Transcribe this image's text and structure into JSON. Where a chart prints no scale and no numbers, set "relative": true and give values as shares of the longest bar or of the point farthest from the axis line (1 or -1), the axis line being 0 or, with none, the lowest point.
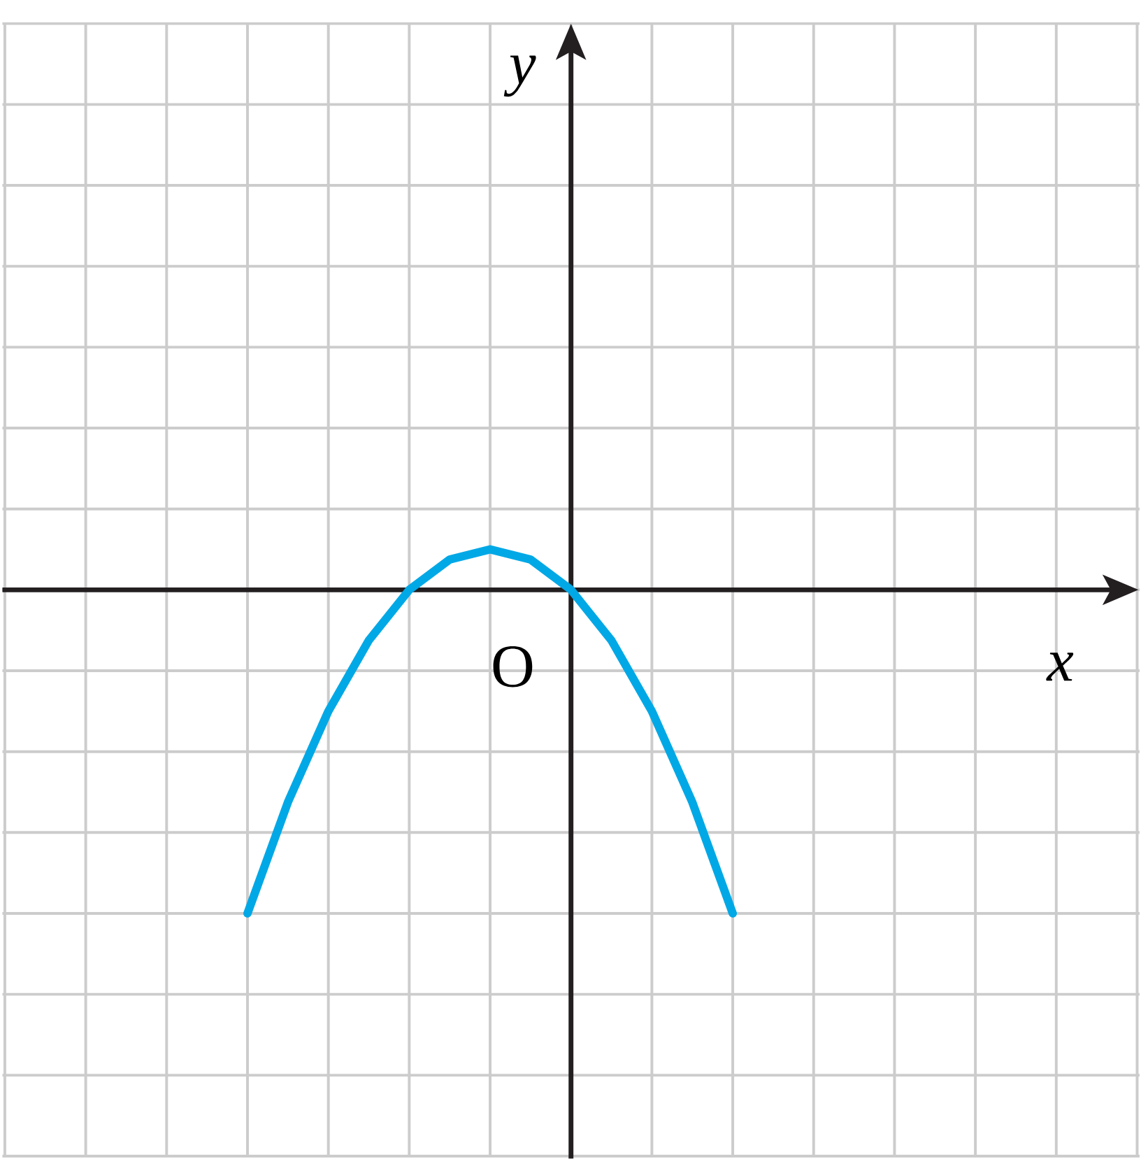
{
  "chart_data": {
    "type": "line",
    "relative": true,
    "grid": true,
    "annotations": [
      "O",
      "x",
      "y"
    ],
    "categories": [
      null,
      null,
      null,
      null,
      null,
      null,
      null,
      null,
      null,
      null,
      null,
      null,
      null
    ],
    "series": [
      {
        "color": "#00a8e6",
        "marker": "none",
        "line_style": "solid",
        "values": [
          -1,
          -0.65625,
          -0.375,
          -0.15625,
          0,
          0.09375,
          0.125,
          0.09375,
          0,
          -0.15625,
          -0.375,
          -0.65625,
          -1
        ]
      }
    ]
  }
}
